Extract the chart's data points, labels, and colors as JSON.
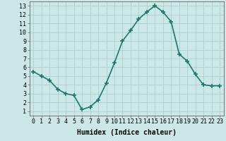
{
  "x": [
    0,
    1,
    2,
    3,
    4,
    5,
    6,
    7,
    8,
    9,
    10,
    11,
    12,
    13,
    14,
    15,
    16,
    17,
    18,
    19,
    20,
    21,
    22,
    23
  ],
  "y": [
    5.5,
    5.0,
    4.5,
    3.5,
    3.0,
    2.8,
    1.2,
    1.5,
    2.3,
    4.2,
    6.5,
    9.0,
    10.2,
    11.5,
    12.3,
    13.0,
    12.3,
    11.2,
    7.5,
    6.7,
    5.2,
    4.0,
    3.9,
    3.9
  ],
  "line_color": "#1a7a6e",
  "marker": "+",
  "marker_size": 4,
  "bg_color": "#cce8e6",
  "grid_color": "#aacfcd",
  "xlabel": "Humidex (Indice chaleur)",
  "xlabel_fontsize": 7,
  "xlim": [
    -0.5,
    23.5
  ],
  "ylim": [
    0.5,
    13.5
  ],
  "yticks": [
    1,
    2,
    3,
    4,
    5,
    6,
    7,
    8,
    9,
    10,
    11,
    12,
    13
  ],
  "xticks": [
    0,
    1,
    2,
    3,
    4,
    5,
    6,
    7,
    8,
    9,
    10,
    11,
    12,
    13,
    14,
    15,
    16,
    17,
    18,
    19,
    20,
    21,
    22,
    23
  ],
  "tick_fontsize": 6,
  "line_width": 1.2
}
